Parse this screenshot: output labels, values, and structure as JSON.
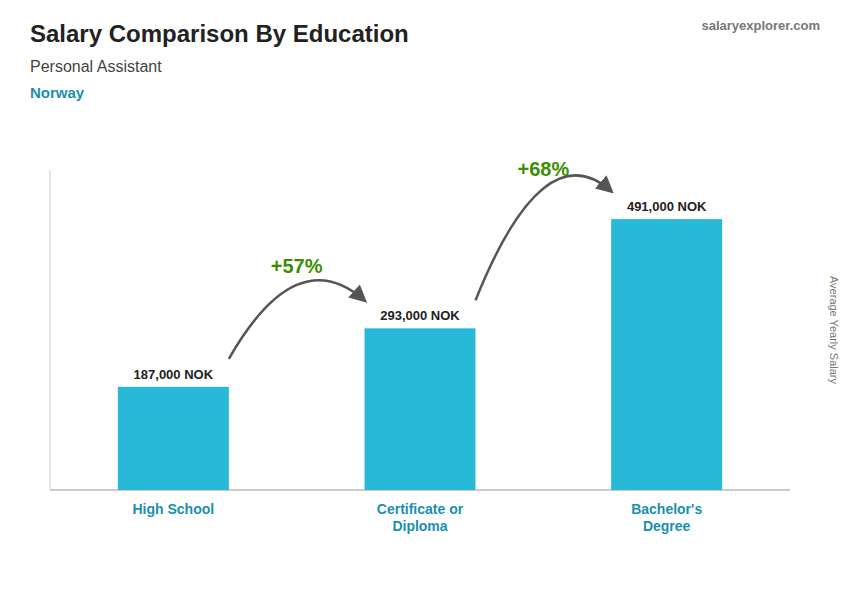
{
  "chart_data": {
    "type": "bar",
    "title": "Salary Comparison By Education",
    "subtitle": "Personal Assistant",
    "annotations": [
      "Norway",
      "+57%",
      "+68%",
      "salaryexplorer.com"
    ],
    "ylabel": "Average Yearly Salary",
    "categories": [
      "High School",
      "Certificate or\nDiploma",
      "Bachelor's\nDegree"
    ],
    "values": [
      187000,
      293000,
      491000
    ],
    "value_labels": [
      "187,000 NOK",
      "293,000 NOK",
      "491,000 NOK"
    ],
    "data_labels": true,
    "color": "#29b9d8",
    "ylim": [
      0,
      580000
    ],
    "tick_labels": "x",
    "grid": false
  }
}
